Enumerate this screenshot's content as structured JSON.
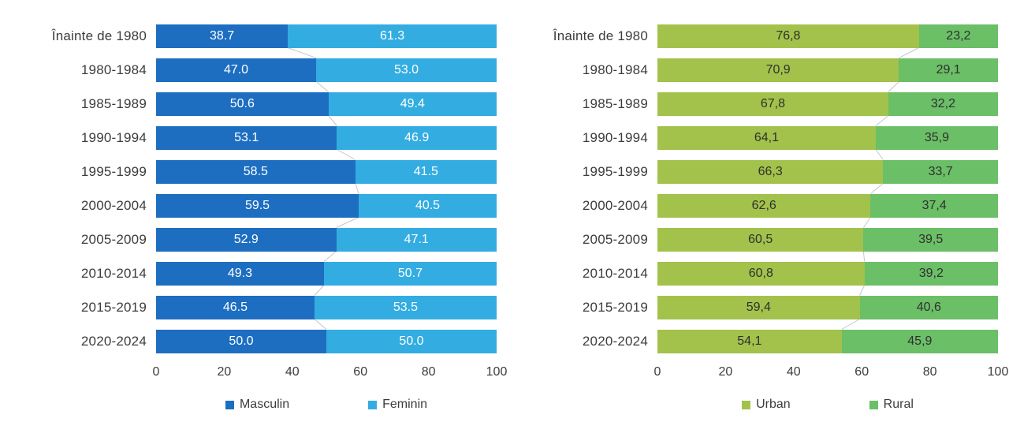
{
  "chart_data": [
    {
      "type": "bar",
      "orientation": "horizontal",
      "stacked": true,
      "title": "",
      "categories": [
        "Înainte de 1980",
        "1980-1984",
        "1985-1989",
        "1990-1994",
        "1995-1999",
        "2000-2004",
        "2005-2009",
        "2010-2014",
        "2015-2019",
        "2020-2024"
      ],
      "series": [
        {
          "name": "Masculin",
          "color": "#1d6ec1",
          "label_color": "#ffffff",
          "values": [
            38.7,
            47.0,
            50.6,
            53.1,
            58.5,
            59.5,
            52.9,
            49.3,
            46.5,
            50.0
          ],
          "labels": [
            "38.7",
            "47.0",
            "50.6",
            "53.1",
            "58.5",
            "59.5",
            "52.9",
            "49.3",
            "46.5",
            "50.0"
          ]
        },
        {
          "name": "Feminin",
          "color": "#33ade1",
          "label_color": "#ffffff",
          "values": [
            61.3,
            53.0,
            49.4,
            46.9,
            41.5,
            40.5,
            47.1,
            50.7,
            53.5,
            50.0
          ],
          "labels": [
            "61.3",
            "53.0",
            "49.4",
            "46.9",
            "41.5",
            "40.5",
            "47.1",
            "50.7",
            "53.5",
            "50.0"
          ]
        }
      ],
      "x_ticks": [
        "0",
        "20",
        "40",
        "60",
        "80",
        "100"
      ],
      "xlim": [
        0,
        100
      ],
      "grid": false,
      "legend_position": "bottom",
      "connector_line_color": "#c6c6c6"
    },
    {
      "type": "bar",
      "orientation": "horizontal",
      "stacked": true,
      "title": "",
      "categories": [
        "Înainte de 1980",
        "1980-1984",
        "1985-1989",
        "1990-1994",
        "1995-1999",
        "2000-2004",
        "2005-2009",
        "2010-2014",
        "2015-2019",
        "2020-2024"
      ],
      "series": [
        {
          "name": "Urban",
          "color": "#a2c24b",
          "label_color": "#303030",
          "values": [
            76.8,
            70.9,
            67.8,
            64.1,
            66.3,
            62.6,
            60.5,
            60.8,
            59.4,
            54.1
          ],
          "labels": [
            "76,8",
            "70,9",
            "67,8",
            "64,1",
            "66,3",
            "62,6",
            "60,5",
            "60,8",
            "59,4",
            "54,1"
          ]
        },
        {
          "name": "Rural",
          "color": "#6bbf67",
          "label_color": "#303030",
          "values": [
            23.2,
            29.1,
            32.2,
            35.9,
            33.7,
            37.4,
            39.5,
            39.2,
            40.6,
            45.9
          ],
          "labels": [
            "23,2",
            "29,1",
            "32,2",
            "35,9",
            "33,7",
            "37,4",
            "39,5",
            "39,2",
            "40,6",
            "45,9"
          ]
        }
      ],
      "x_ticks": [
        "0",
        "20",
        "40",
        "60",
        "80",
        "100"
      ],
      "xlim": [
        0,
        100
      ],
      "grid": false,
      "legend_position": "bottom",
      "connector_line_color": "#c6c6c6"
    }
  ]
}
